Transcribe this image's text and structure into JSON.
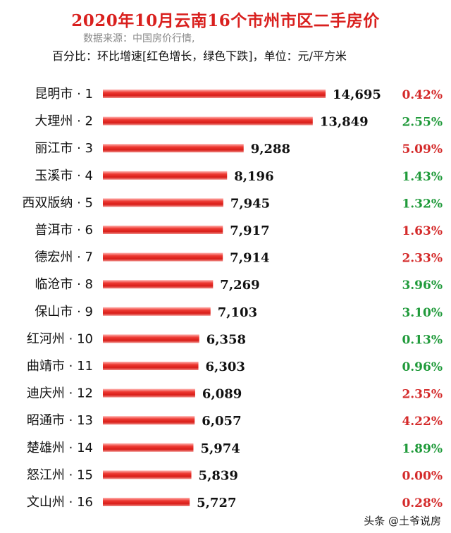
{
  "chart_data": {
    "type": "bar",
    "orientation": "horizontal",
    "title": "2020年10月云南16个市州市区二手房价",
    "subtitle_source": "数据来源：中国房价行情,",
    "subtitle_note": "百分比：环比增速[红色增长，绿色下跌]，单位：元/平方米",
    "categories": [
      "昆明市 · 1",
      "大理州 · 2",
      "丽江市 · 3",
      "玉溪市 · 4",
      "西双版纳 · 5",
      "普洱市 · 6",
      "德宏州 · 7",
      "临沧市 · 8",
      "保山市 · 9",
      "红河州 · 10",
      "曲靖市 · 11",
      "迪庆州 · 12",
      "昭通市 · 13",
      "楚雄州 · 14",
      "怒江州 · 15",
      "文山州 · 16"
    ],
    "values": [
      14695,
      13849,
      9288,
      8196,
      7945,
      7917,
      7914,
      7269,
      7103,
      6358,
      6303,
      6089,
      6057,
      5974,
      5839,
      5727
    ],
    "value_labels": [
      "14,695",
      "13,849",
      "9,288",
      "8,196",
      "7,945",
      "7,917",
      "7,914",
      "7,269",
      "7,103",
      "6,358",
      "6,303",
      "6,089",
      "6,057",
      "5,974",
      "5,839",
      "5,727"
    ],
    "change_pct": [
      "0.42%",
      "2.55%",
      "5.09%",
      "1.43%",
      "1.32%",
      "1.63%",
      "2.33%",
      "3.96%",
      "3.10%",
      "0.13%",
      "0.96%",
      "2.35%",
      "4.22%",
      "1.89%",
      "0.00%",
      "0.28%"
    ],
    "change_direction": [
      "up",
      "down",
      "up",
      "down",
      "down",
      "up",
      "up",
      "down",
      "down",
      "down",
      "down",
      "up",
      "up",
      "down",
      "up",
      "up"
    ],
    "colors": {
      "bar": "#e8231f",
      "up": "#d42a2a",
      "down": "#1f9a3a",
      "title": "#d9201e"
    },
    "xlim": [
      0,
      14695
    ],
    "grid": false,
    "legend": "none"
  },
  "watermark": "头条 @土爷说房"
}
